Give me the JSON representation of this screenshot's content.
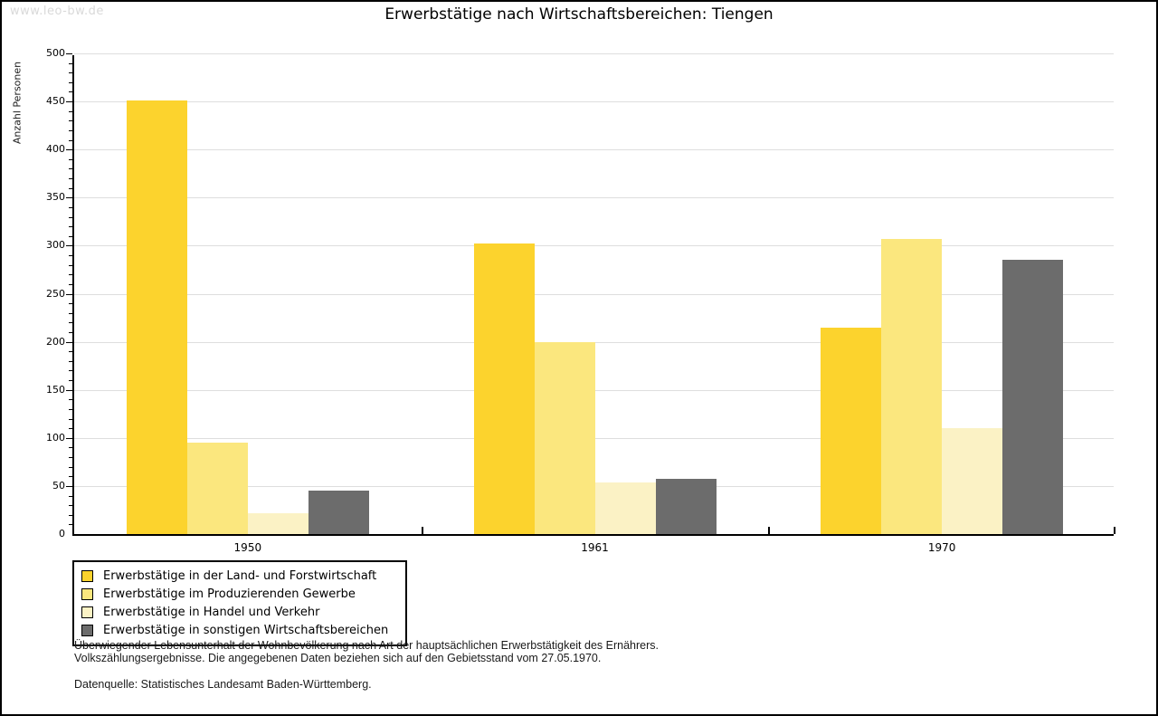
{
  "watermark": "www.leo-bw.de",
  "title": "Erwerbstätige nach Wirtschaftsbereichen: Tiengen",
  "chart_data": {
    "type": "bar",
    "title": "Erwerbstätige nach Wirtschaftsbereichen: Tiengen",
    "xlabel": "",
    "ylabel": "Anzahl Personen",
    "ylim": [
      0,
      500
    ],
    "yticks": [
      0,
      50,
      100,
      150,
      200,
      250,
      300,
      350,
      400,
      450,
      500
    ],
    "minor_tick_step": 10,
    "grid": true,
    "legend_position": "bottom-left",
    "categories": [
      "1950",
      "1961",
      "1970"
    ],
    "series": [
      {
        "name": "Erwerbstätige in der Land- und Forstwirtschaft",
        "color": "#fcd32d",
        "values": [
          451,
          302,
          215
        ]
      },
      {
        "name": "Erwerbstätige im Produzierenden Gewerbe",
        "color": "#fbe77e",
        "values": [
          95,
          200,
          307
        ]
      },
      {
        "name": "Erwerbstätige in Handel und Verkehr",
        "color": "#fbf2c5",
        "values": [
          22,
          54,
          110
        ]
      },
      {
        "name": "Erwerbstätige in sonstigen Wirtschaftsbereichen",
        "color": "#6c6c6c",
        "values": [
          45,
          57,
          285
        ]
      }
    ]
  },
  "colors": {
    "grid": "#dedede",
    "axis": "#000000",
    "watermark": "#d9d9d9"
  },
  "footer": {
    "line1": "Überwiegender Lebensunterhalt der Wohnbevölkerung nach Art der hauptsächlichen Erwerbstätigkeit des Ernährers.",
    "line2": "Volkszählungsergebnisse. Die angegebenen Daten beziehen sich auf den Gebietsstand vom 27.05.1970.",
    "source": "Datenquelle: Statistisches Landesamt Baden-Württemberg."
  }
}
